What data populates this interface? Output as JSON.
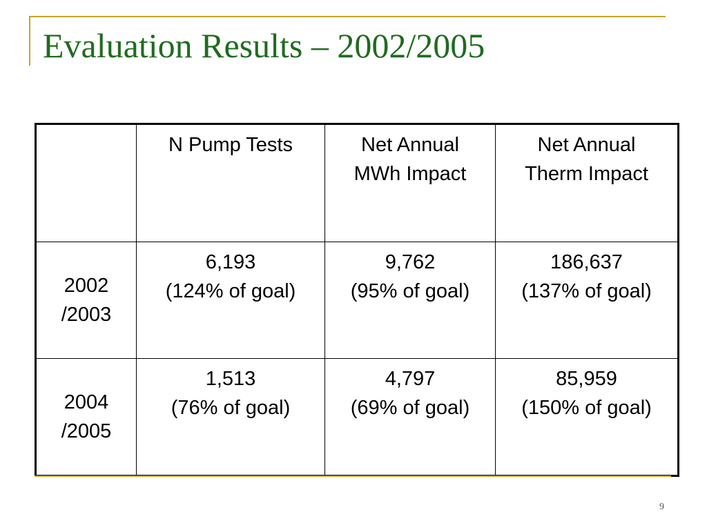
{
  "slide": {
    "title": "Evaluation Results – 2002/2005",
    "page_number": "9",
    "accent_color": "#c9a227",
    "title_color": "#1f6b1f"
  },
  "table": {
    "header": {
      "corner": "",
      "col1": [
        "N Pump Tests"
      ],
      "col2": [
        "Net Annual",
        "MWh Impact"
      ],
      "col3": [
        "Net Annual",
        "Therm Impact"
      ]
    },
    "rows": [
      {
        "label": [
          "2002",
          "/2003"
        ],
        "pump_tests": [
          "6,193",
          "(124% of goal)"
        ],
        "mwh_impact": [
          "9,762",
          "(95% of goal)"
        ],
        "therm_impact": [
          "186,637",
          "(137% of goal)"
        ]
      },
      {
        "label": [
          "2004",
          "/2005"
        ],
        "pump_tests": [
          "1,513",
          "(76% of goal)"
        ],
        "mwh_impact": [
          "4,797",
          "(69% of goal)"
        ],
        "therm_impact": [
          "85,959",
          "(150% of goal)"
        ]
      }
    ]
  }
}
